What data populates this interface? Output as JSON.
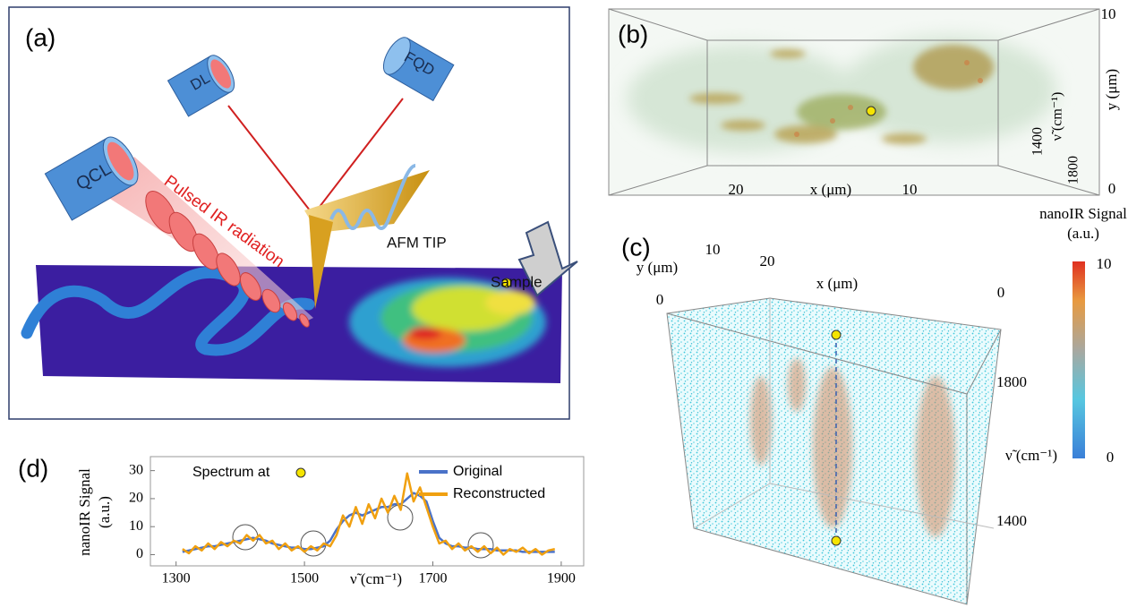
{
  "panel_a": {
    "label": "(a)",
    "qcl": "QCL",
    "dl": "DL",
    "fqd": "FQD",
    "radiation": "Pulsed IR radiation",
    "tip": "AFM TIP",
    "sample": "Sample"
  },
  "panel_b": {
    "label": "(b)",
    "x_label": "x (μm)",
    "x_ticks": [
      20,
      10
    ],
    "y_label": "y (μm)",
    "y_ticks": [
      10,
      0
    ],
    "nu_label": "ν̃ (cm⁻¹)",
    "nu_ticks": [
      1400,
      1800
    ]
  },
  "panel_c": {
    "label": "(c)",
    "x_label": "x (μm)",
    "x_ticks": [
      20
    ],
    "y_label": "y (μm)",
    "y_ticks": [
      10,
      0
    ],
    "nu_label": "ν̃ (cm⁻¹)",
    "nu_ticks": [
      0,
      1800,
      1400
    ],
    "colorbar_title": "nanoIR Signal (a.u.)",
    "colorbar_ticks": [
      10,
      0
    ]
  },
  "chart_data": {
    "type": "line",
    "label": "(d)",
    "annotation": "Spectrum at",
    "x_label": "ν̃ (cm⁻¹)",
    "y_label": "nanoIR Signal (a.u.)",
    "xlim": [
      1260,
      1935
    ],
    "ylim": [
      -4,
      35
    ],
    "xticks": [
      1300,
      1500,
      1700,
      1900
    ],
    "yticks": [
      0,
      10,
      20,
      30
    ],
    "x": [
      1310,
      1320,
      1330,
      1340,
      1350,
      1360,
      1370,
      1380,
      1390,
      1400,
      1410,
      1420,
      1430,
      1440,
      1450,
      1460,
      1470,
      1480,
      1490,
      1500,
      1510,
      1520,
      1530,
      1540,
      1550,
      1560,
      1570,
      1580,
      1590,
      1600,
      1610,
      1620,
      1630,
      1640,
      1650,
      1660,
      1670,
      1680,
      1690,
      1700,
      1710,
      1720,
      1730,
      1740,
      1750,
      1760,
      1770,
      1780,
      1790,
      1800,
      1810,
      1820,
      1830,
      1840,
      1850,
      1860,
      1870,
      1880,
      1890
    ],
    "series": [
      {
        "name": "Original",
        "color": "#4a72c8",
        "values": [
          1,
          1.5,
          2,
          2.5,
          3,
          3,
          3.5,
          4,
          4.5,
          5,
          5.5,
          6,
          5.5,
          5,
          4,
          3.5,
          3,
          2.5,
          2.5,
          2,
          2,
          2.5,
          3,
          5,
          9,
          12,
          14,
          15,
          14,
          15,
          16,
          17,
          17,
          18,
          18,
          20,
          22,
          21,
          19,
          12,
          6,
          4,
          3,
          3,
          2.5,
          2.5,
          2,
          2,
          2,
          1.5,
          1.5,
          1.5,
          1.5,
          1,
          1,
          1,
          1,
          1,
          1
        ]
      },
      {
        "name": "Reconstructed",
        "color": "#f0a010",
        "values": [
          2,
          0.5,
          3,
          1.5,
          4,
          2,
          4.5,
          3,
          5,
          4,
          7,
          5,
          7,
          4,
          5,
          2,
          4,
          1.5,
          3,
          1,
          3,
          1.5,
          4,
          3,
          7,
          14,
          10,
          17,
          11,
          18,
          13,
          20,
          15,
          21,
          16,
          29,
          19,
          24,
          17,
          10,
          4,
          5,
          2,
          4,
          1.5,
          3,
          1,
          3,
          0.5,
          2.5,
          0,
          2,
          1,
          2.5,
          0.5,
          2,
          0,
          1.5,
          2
        ]
      }
    ]
  }
}
